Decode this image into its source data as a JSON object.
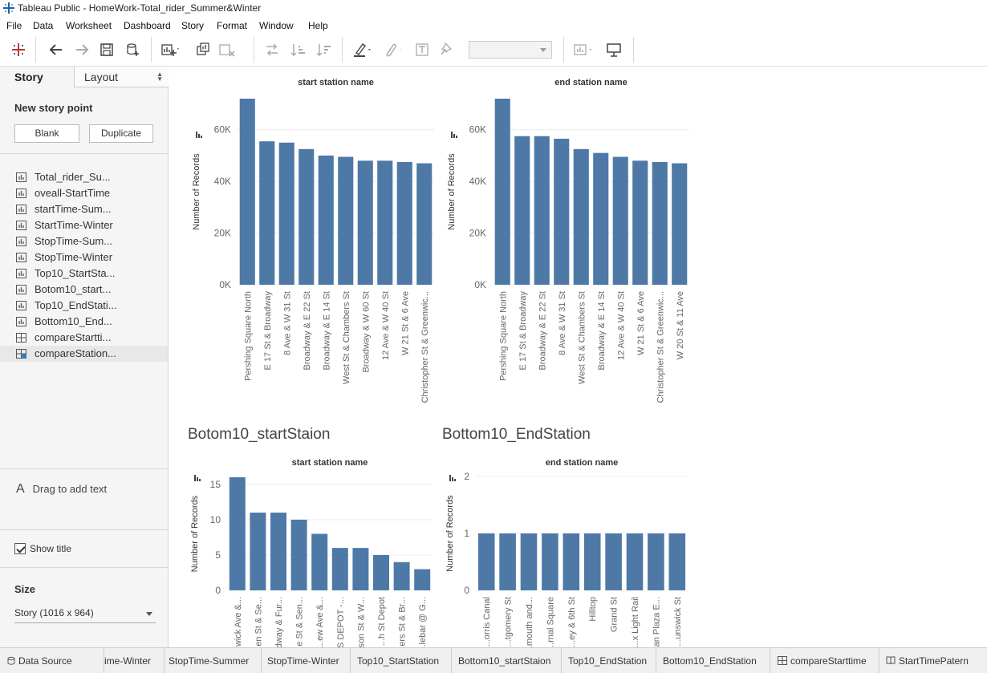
{
  "window": {
    "title": "Tableau Public - HomeWork-Total_rider_Summer&Winter"
  },
  "menu": [
    "File",
    "Data",
    "Worksheet",
    "Dashboard",
    "Story",
    "Format",
    "Window",
    "Help"
  ],
  "sidebar": {
    "tab_story": "Story",
    "tab_layout": "Layout",
    "new_story_point": "New story point",
    "blank_button": "Blank",
    "duplicate_button": "Duplicate",
    "sheets": [
      {
        "label": "Total_rider_Su...",
        "icon": "bar-chart-icon"
      },
      {
        "label": "oveall-StartTime",
        "icon": "bar-chart-icon"
      },
      {
        "label": "startTime-Sum...",
        "icon": "bar-chart-icon"
      },
      {
        "label": "StartTime-Winter",
        "icon": "bar-chart-icon"
      },
      {
        "label": "StopTime-Sum...",
        "icon": "bar-chart-icon"
      },
      {
        "label": "StopTime-Winter",
        "icon": "bar-chart-icon"
      },
      {
        "label": "Top10_StartSta...",
        "icon": "bar-chart-icon"
      },
      {
        "label": "Botom10_start...",
        "icon": "bar-chart-icon"
      },
      {
        "label": "Top10_EndStati...",
        "icon": "bar-chart-icon"
      },
      {
        "label": "Bottom10_End...",
        "icon": "bar-chart-icon"
      },
      {
        "label": "compareStartti...",
        "icon": "dashboard-icon"
      },
      {
        "label": "compareStation...",
        "icon": "dashboard-check-icon"
      }
    ],
    "drag_text": "Drag to add text",
    "show_title": "Show title",
    "size_label": "Size",
    "size_value": "Story (1016 x 964)"
  },
  "bottom_tabs": [
    "Data Source",
    "ime-Winter",
    "StopTime-Summer",
    "StopTime-Winter",
    "Top10_StartStation",
    "Bottom10_startStaion",
    "Top10_EndStation",
    "Bottom10_EndStation",
    "compareStarttime",
    "StartTimePatern"
  ],
  "chart_data": [
    {
      "type": "bar",
      "title": "start station name",
      "ylabel": "Number of Records",
      "yticks": [
        "0K",
        "20K",
        "40K",
        "60K"
      ],
      "ylim": [
        0,
        72000
      ],
      "categories": [
        "Pershing Square North",
        "E 17 St & Broadway",
        "8 Ave & W 31 St",
        "Broadway & E 22 St",
        "Broadway & E 14 St",
        "West St & Chambers St",
        "Broadway & W 60 St",
        "12 Ave & W 40 St",
        "W 21 St & 6 Ave",
        "Christopher St & Greenwic..."
      ],
      "values": [
        72000,
        55500,
        55000,
        52500,
        50000,
        49500,
        48000,
        48000,
        47500,
        47000
      ]
    },
    {
      "type": "bar",
      "title": "end station name",
      "ylabel": "Number of Records",
      "yticks": [
        "0K",
        "20K",
        "40K",
        "60K"
      ],
      "ylim": [
        0,
        72000
      ],
      "categories": [
        "Pershing Square North",
        "E 17 St & Broadway",
        "Broadway & E 22 St",
        "8 Ave & W 31 St",
        "West St & Chambers St",
        "Broadway & E 14 St",
        "12 Ave & W 40 St",
        "W 21 St & 6 Ave",
        "Christopher St & Greenwic...",
        "W 20 St & 11 Ave"
      ],
      "values": [
        72000,
        57500,
        57500,
        56500,
        52500,
        51000,
        49500,
        48000,
        47500,
        47000
      ]
    },
    {
      "type": "bar",
      "sheet_title": "Botom10_startStaion",
      "title": "start station name",
      "ylabel": "Number of Records",
      "yticks": [
        "0",
        "5",
        "10",
        "15"
      ],
      "ylim": [
        0,
        16
      ],
      "categories": [
        "...wick Ave &...",
        "...en St & Se...",
        "...dway & Fur...",
        "...e St & Sen...",
        "...ew Ave &...",
        "...S DEPOT -...",
        "...son St & W...",
        "...h St Depot",
        "...ers St & Br...",
        "...lebar @ G..."
      ],
      "values": [
        16,
        11,
        11,
        10,
        8,
        6,
        6,
        5,
        4,
        3
      ]
    },
    {
      "type": "bar",
      "sheet_title": "Bottom10_EndStation",
      "title": "end station name",
      "ylabel": "Number of Records",
      "yticks": [
        "0",
        "1",
        "2"
      ],
      "ylim": [
        0,
        2
      ],
      "categories": [
        "...orris Canal",
        "...tgomery St",
        "...mouth and...",
        "...rnal Square",
        "...ey & 6th St",
        "Hilltop",
        "Grand St",
        "...x Light Rail",
        "...an Plaza E...",
        "...unswick St"
      ],
      "values": [
        1,
        1,
        1,
        1,
        1,
        1,
        1,
        1,
        1,
        1
      ]
    }
  ]
}
